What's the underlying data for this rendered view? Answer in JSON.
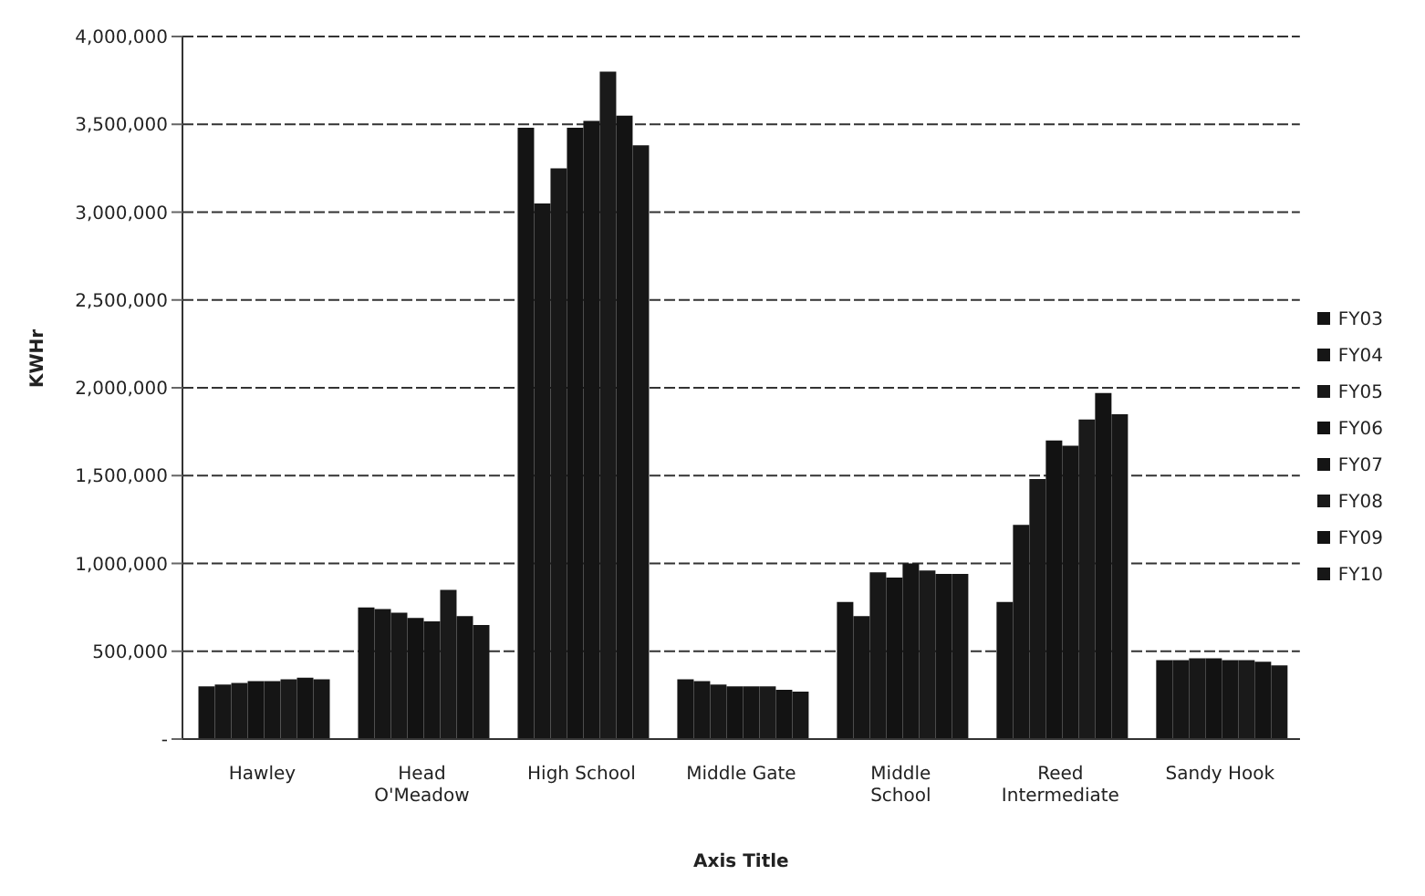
{
  "chart_data": {
    "type": "bar",
    "xlabel": "Axis Title",
    "ylabel": "KWHr",
    "categories": [
      "Hawley",
      "Head O'Meadow",
      "High School",
      "Middle Gate",
      "Middle School",
      "Reed Intermediate",
      "Sandy Hook"
    ],
    "series": [
      {
        "name": "FY03",
        "color": "#141414",
        "values": [
          300000,
          750000,
          3480000,
          340000,
          780000,
          780000,
          450000
        ]
      },
      {
        "name": "FY04",
        "color": "#161616",
        "values": [
          310000,
          740000,
          3050000,
          330000,
          700000,
          1220000,
          450000
        ]
      },
      {
        "name": "FY05",
        "color": "#181818",
        "values": [
          320000,
          720000,
          3250000,
          310000,
          950000,
          1480000,
          460000
        ]
      },
      {
        "name": "FY06",
        "color": "#121212",
        "values": [
          330000,
          690000,
          3480000,
          300000,
          920000,
          1700000,
          460000
        ]
      },
      {
        "name": "FY07",
        "color": "#151515",
        "values": [
          330000,
          670000,
          3520000,
          300000,
          1000000,
          1670000,
          450000
        ]
      },
      {
        "name": "FY08",
        "color": "#1a1a1a",
        "values": [
          340000,
          850000,
          3800000,
          300000,
          960000,
          1820000,
          450000
        ]
      },
      {
        "name": "FY09",
        "color": "#131313",
        "values": [
          350000,
          700000,
          3550000,
          280000,
          940000,
          1970000,
          440000
        ]
      },
      {
        "name": "FY10",
        "color": "#171717",
        "values": [
          340000,
          650000,
          3380000,
          270000,
          940000,
          1850000,
          420000
        ]
      }
    ],
    "ylim": [
      0,
      4000000
    ],
    "yticks": [
      {
        "value": 0,
        "label": "-"
      },
      {
        "value": 500000,
        "label": "500,000"
      },
      {
        "value": 1000000,
        "label": "1,000,000"
      },
      {
        "value": 1500000,
        "label": "1,500,000"
      },
      {
        "value": 2000000,
        "label": "2,000,000"
      },
      {
        "value": 2500000,
        "label": "2,500,000"
      },
      {
        "value": 3000000,
        "label": "3,000,000"
      },
      {
        "value": 3500000,
        "label": "3,500,000"
      },
      {
        "value": 4000000,
        "label": "4,000,000"
      }
    ],
    "grid": "y",
    "legend": "right"
  }
}
